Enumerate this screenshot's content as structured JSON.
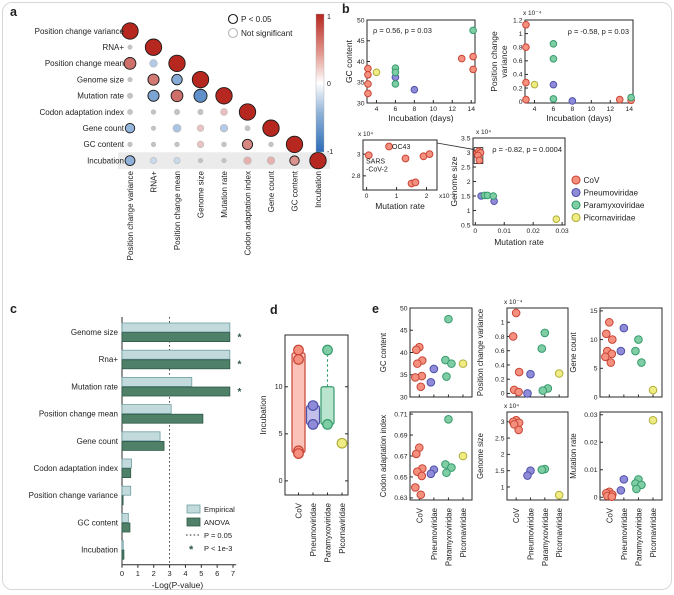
{
  "panels": {
    "a": "a",
    "b": "b",
    "c": "c",
    "d": "d",
    "e": "e"
  },
  "families": [
    {
      "name": "CoV",
      "fill": "#F5907E",
      "stroke": "#C84436"
    },
    {
      "name": "Pneumoviridae",
      "fill": "#8F8BD8",
      "stroke": "#4E51A8"
    },
    {
      "name": "Paramyxoviridae",
      "fill": "#7FCDA4",
      "stroke": "#359B6C"
    },
    {
      "name": "Picornaviridae",
      "fill": "#EFEC83",
      "stroke": "#B0AC3C"
    }
  ],
  "chart_data": [
    {
      "id": "a",
      "type": "correlation-matrix",
      "labels": [
        "Position change variance",
        "RNA+",
        "Position change mean",
        "Genome size",
        "Mutation rate",
        "Codon adaptation index",
        "Gene count",
        "GC content",
        "Incubation"
      ],
      "cells": [
        [
          [
            1,
            1
          ]
        ],
        [
          [
            0.02,
            0
          ],
          [
            1,
            1
          ]
        ],
        [
          [
            0.6,
            1
          ],
          [
            -0.28,
            0
          ],
          [
            1,
            1
          ]
        ],
        [
          [
            0.03,
            0
          ],
          [
            0.55,
            1
          ],
          [
            -0.5,
            1
          ],
          [
            1,
            1
          ]
        ],
        [
          [
            0.1,
            0
          ],
          [
            -0.55,
            1
          ],
          [
            0.6,
            1
          ],
          [
            -0.7,
            1
          ],
          [
            1,
            1
          ]
        ],
        [
          [
            0.08,
            0
          ],
          [
            0.05,
            0
          ],
          [
            0.1,
            0
          ],
          [
            0.1,
            0
          ],
          [
            0.22,
            0
          ],
          [
            1,
            1
          ]
        ],
        [
          [
            -0.42,
            1
          ],
          [
            0.03,
            0
          ],
          [
            -0.32,
            0
          ],
          [
            0.2,
            0
          ],
          [
            -0.28,
            0
          ],
          [
            0.08,
            0
          ],
          [
            1,
            1
          ]
        ],
        [
          [
            0.04,
            0
          ],
          [
            0.04,
            0
          ],
          [
            0.05,
            0
          ],
          [
            0.2,
            0
          ],
          [
            0.06,
            0
          ],
          [
            0.48,
            1
          ],
          [
            0.05,
            0
          ],
          [
            1,
            1
          ]
        ],
        [
          [
            -0.45,
            1
          ],
          [
            -0.18,
            0
          ],
          [
            -0.18,
            0
          ],
          [
            0.04,
            0
          ],
          [
            0.04,
            0
          ],
          [
            0.28,
            0
          ],
          [
            0.28,
            0
          ],
          [
            0.42,
            1
          ],
          [
            1,
            1
          ]
        ]
      ],
      "legend": {
        "significant": "P < 0.05",
        "not_significant": "Not significant"
      },
      "colorbar": {
        "max": "1",
        "mid": "0",
        "min": "-1",
        "pos_color": "#B6271F",
        "neg_color": "#2B6CB8"
      },
      "highlight_row": "Incubation"
    },
    {
      "id": "b1",
      "type": "scatter",
      "xlabel": "Incubation (days)",
      "ylabel": "GC content",
      "annotation": "ρ = 0.56, p = 0.03",
      "xlim": [
        3,
        14.4
      ],
      "ylim": [
        30,
        50
      ],
      "xticks": [
        4,
        6,
        8,
        10,
        12,
        14
      ],
      "yticks": [
        30,
        35,
        40,
        45,
        50
      ],
      "series": [
        {
          "family": "CoV",
          "points": [
            [
              3.1,
              38.3
            ],
            [
              3.1,
              36.8
            ],
            [
              3.1,
              34.6
            ],
            [
              3.1,
              32.3
            ],
            [
              13,
              40.7
            ],
            [
              14.2,
              41.2
            ],
            [
              14.2,
              38.1
            ]
          ]
        },
        {
          "family": "Pneumoviridae",
          "points": [
            [
              6,
              36.2
            ],
            [
              8,
              33.2
            ]
          ]
        },
        {
          "family": "Paramyxoviridae",
          "points": [
            [
              6,
              38.4
            ],
            [
              6,
              37.4
            ],
            [
              6,
              34.6
            ],
            [
              14.2,
              47.5
            ]
          ]
        },
        {
          "family": "Picornaviridae",
          "points": [
            [
              4,
              37.4
            ]
          ]
        }
      ]
    },
    {
      "id": "b2",
      "type": "scatter",
      "xlabel": "Incubation (days)",
      "ylabel_lines": [
        "Position change",
        "variance"
      ],
      "scale": "x 10⁻⁴",
      "annotation": "ρ = -0.58, p = 0.03",
      "xlim": [
        3,
        14.4
      ],
      "ylim": [
        -0.02,
        1.2
      ],
      "xticks": [
        4,
        6,
        8,
        10,
        12,
        14
      ],
      "yticks": [
        0,
        0.2,
        0.4,
        0.6,
        0.8,
        1,
        1.2
      ],
      "series": [
        {
          "family": "CoV",
          "points": [
            [
              3.1,
              1.13
            ],
            [
              3.1,
              0.8
            ],
            [
              3.1,
              0.28
            ],
            [
              3.1,
              0.03
            ],
            [
              13,
              0.03
            ],
            [
              14.2,
              0.02
            ]
          ]
        },
        {
          "family": "Pneumoviridae",
          "points": [
            [
              6,
              0.25
            ],
            [
              8,
              0.01
            ]
          ]
        },
        {
          "family": "Paramyxoviridae",
          "points": [
            [
              6,
              0.85
            ],
            [
              6,
              0.63
            ],
            [
              6,
              0.04
            ],
            [
              14.2,
              0.06
            ]
          ]
        },
        {
          "family": "Picornaviridae",
          "points": [
            [
              4,
              0.25
            ]
          ]
        }
      ]
    },
    {
      "id": "b3",
      "type": "scatter-inset",
      "xlabel": "Mutation rate",
      "scale_y": "x 10⁴",
      "scale_x": "x10⁻³",
      "xlim": [
        -0.12,
        2.35
      ],
      "ylim": [
        2.67,
        3.13
      ],
      "xticks": [
        0,
        1,
        2
      ],
      "yticks": [
        2.8,
        3
      ],
      "series": [
        {
          "family": "CoV",
          "points": [
            [
              0.07,
              2.99
            ],
            [
              0.75,
              3.07
            ],
            [
              1.3,
              2.96
            ],
            [
              1.5,
              2.73
            ],
            [
              1.63,
              2.74
            ],
            [
              1.9,
              2.98
            ],
            [
              2.1,
              3.0
            ]
          ]
        }
      ],
      "point_labels": [
        {
          "text": "OC43",
          "x": 0.85,
          "y": 3.07
        },
        {
          "lines": [
            "SARS",
            "-CoV-2"
          ],
          "x": 0.0,
          "y": 2.95
        }
      ]
    },
    {
      "id": "b4",
      "type": "scatter",
      "xlabel": "Mutation rate",
      "ylabel": "Genome size",
      "scale": "x 10⁴",
      "annotation": "ρ = -0.82, p = 0.0004",
      "xlim": [
        -0.0008,
        0.031
      ],
      "ylim": [
        0.5,
        3.5
      ],
      "xticks": [
        0,
        0.01,
        0.02,
        0.03
      ],
      "yticks": [
        0.5,
        1,
        1.5,
        2,
        2.5,
        3,
        3.5
      ],
      "zoom_box": [
        -0.0004,
        2.62,
        0.0026,
        3.17
      ],
      "series": [
        {
          "family": "CoV",
          "points": [
            [
              0.0006,
              2.98
            ],
            [
              0.0012,
              3.04
            ],
            [
              0.0018,
              2.99
            ],
            [
              0.0009,
              2.9
            ],
            [
              0.0014,
              2.73
            ]
          ]
        },
        {
          "family": "Pneumoviridae",
          "points": [
            [
              0.002,
              1.5
            ],
            [
              0.0065,
              1.32
            ]
          ]
        },
        {
          "family": "Paramyxoviridae",
          "points": [
            [
              0.0032,
              1.52
            ],
            [
              0.0042,
              1.52
            ],
            [
              0.0062,
              1.5
            ]
          ]
        },
        {
          "family": "Picornaviridae",
          "points": [
            [
              0.028,
              0.7
            ]
          ]
        }
      ],
      "legend_families": [
        "CoV",
        "Pneumoviridae",
        "Paramyxoviridae",
        "Picornaviridae"
      ]
    },
    {
      "id": "c",
      "type": "bar",
      "xlabel": "-Log(P-value)",
      "categories": [
        "Genome size",
        "Rna+",
        "Mutation rate",
        "Position change mean",
        "Gene count",
        "Codon adaptation index",
        "Position change variance",
        "GC content",
        "Incubation"
      ],
      "series": [
        {
          "name": "Empirical",
          "values": [
            6.8,
            6.8,
            4.4,
            3.1,
            2.4,
            0.6,
            0.55,
            0.4,
            0.08
          ],
          "fill": "#C2DADB",
          "stroke": "#6E9EA4"
        },
        {
          "name": "ANOVA",
          "values": [
            6.8,
            6.8,
            6.8,
            5.1,
            2.65,
            0.55,
            0.07,
            0.5,
            0.12
          ],
          "fill": "#4F8169",
          "stroke": "#2F5847"
        }
      ],
      "significant": [
        true,
        true,
        true,
        false,
        false,
        false,
        false,
        false,
        false
      ],
      "threshold": 3,
      "xticks": [
        0,
        1,
        2,
        3,
        4,
        5,
        6,
        7
      ],
      "legend": {
        "empirical": "Empirical",
        "anova": "ANOVA",
        "threshold": "P = 0.05",
        "sig": "P < 1e-3"
      }
    },
    {
      "id": "d",
      "type": "box",
      "ylabel": "Incubation",
      "ylim": [
        -1.5,
        15.5
      ],
      "yticks": [
        0,
        5,
        10
      ],
      "categories": [
        "CoV",
        "Pneumoviridae",
        "Paramyxoviridae",
        "Picornaviridae"
      ],
      "boxes": [
        {
          "family": "CoV",
          "lo": 3,
          "hi": 13.6,
          "points": [
            13.9,
            12.9,
            3.2,
            2.9
          ]
        },
        {
          "family": "Pneumoviridae",
          "lo": 6,
          "hi": 8,
          "points": [
            8,
            6
          ]
        },
        {
          "family": "Paramyxoviridae",
          "lo": 6,
          "hi": 10,
          "whisker_hi": 13.9,
          "points": [
            13.9,
            6
          ]
        },
        {
          "family": "Picornaviridae",
          "points": [
            4
          ]
        }
      ]
    },
    {
      "id": "e1",
      "type": "strip",
      "ylabel": "GC content",
      "ylim": [
        30,
        50
      ],
      "yticks": [
        30,
        35,
        40,
        45,
        50
      ],
      "values": {
        "CoV": [
          41.2,
          40.6,
          38.2,
          37.5,
          34.7,
          34.4,
          32.3
        ],
        "Pneumoviridae": [
          36.3,
          33.3
        ],
        "Paramyxoviridae": [
          47.5,
          38.3,
          37.5,
          34.6
        ],
        "Picornaviridae": [
          37.5
        ]
      }
    },
    {
      "id": "e2",
      "type": "strip",
      "ylabel": "Position change variance",
      "scale": "x 10⁻⁴",
      "ylim": [
        -0.05,
        1.2
      ],
      "yticks": [
        0,
        0.2,
        0.4,
        0.6,
        0.8,
        1
      ],
      "values": {
        "CoV": [
          1.13,
          0.8,
          0.3,
          0.05,
          0.02
        ],
        "Pneumoviridae": [
          0.27,
          0
        ],
        "Paramyxoviridae": [
          0.85,
          0.63,
          0.07,
          0.04
        ],
        "Picornaviridae": [
          0.28
        ]
      }
    },
    {
      "id": "e3",
      "type": "strip",
      "ylabel": "Gene count",
      "ylim": [
        0,
        15.5
      ],
      "yticks": [
        0,
        5,
        10,
        15
      ],
      "values": {
        "CoV": [
          13,
          11,
          10,
          8,
          7.5,
          7,
          6
        ],
        "Pneumoviridae": [
          12,
          8
        ],
        "Paramyxoviridae": [
          10,
          8,
          6
        ],
        "Picornaviridae": [
          1.2
        ]
      }
    },
    {
      "id": "e4",
      "type": "strip",
      "ylabel": "Codon adaptation index",
      "ylim": [
        0.628,
        0.712
      ],
      "yticks": [
        0.63,
        0.65,
        0.67,
        0.69,
        0.71
      ],
      "values": {
        "CoV": [
          0.678,
          0.672,
          0.658,
          0.655,
          0.651,
          0.64,
          0.633
        ],
        "Pneumoviridae": [
          0.657,
          0.653
        ],
        "Paramyxoviridae": [
          0.705,
          0.662,
          0.659,
          0.654
        ],
        "Picornaviridae": [
          0.67
        ]
      }
    },
    {
      "id": "e5",
      "type": "strip",
      "ylabel": "Genome size",
      "scale": "x 10⁴",
      "ylim": [
        0.6,
        3.3
      ],
      "yticks": [
        1,
        1.5,
        2,
        2.5,
        3
      ],
      "values": {
        "CoV": [
          3.05,
          3.0,
          2.97,
          2.92,
          2.75
        ],
        "Pneumoviridae": [
          1.5,
          1.35
        ],
        "Paramyxoviridae": [
          1.55,
          1.53
        ],
        "Picornaviridae": [
          0.75
        ]
      }
    },
    {
      "id": "e6",
      "type": "strip",
      "ylabel": "Mutation rate",
      "ylim": [
        -0.001,
        0.031
      ],
      "yticks": [
        0,
        0.01,
        0.02,
        0.03
      ],
      "values": {
        "CoV": [
          0.002,
          0.0015,
          0.001,
          0.0005,
          0.0002
        ],
        "Pneumoviridae": [
          0.0065,
          0.0025
        ],
        "Paramyxoviridae": [
          0.0065,
          0.005,
          0.0045,
          0.003
        ],
        "Picornaviridae": [
          0.028
        ]
      }
    }
  ]
}
